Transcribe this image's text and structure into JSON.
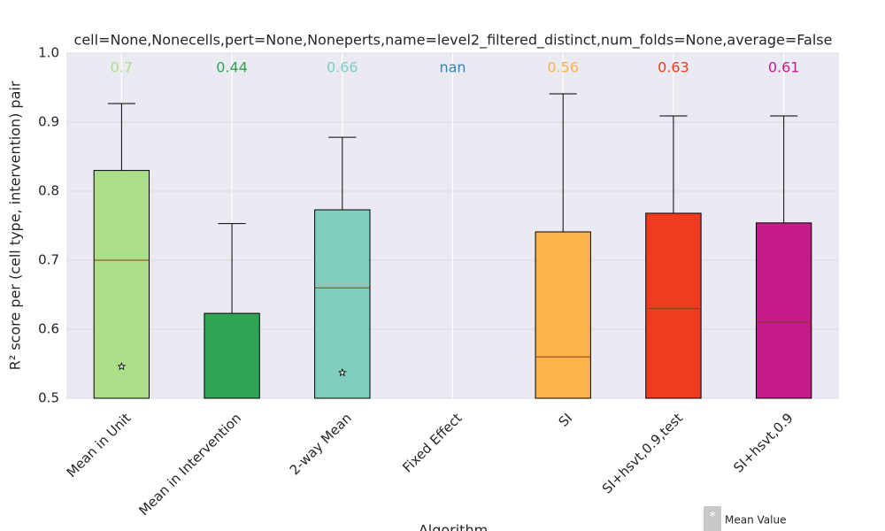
{
  "chart_data": {
    "type": "box",
    "title": "cell=None,Nonecells,pert=None,Noneperts,name=level2_filtered_distinct,num_folds=None,average=False",
    "x_label": "Algorithm",
    "y_label": "R² score per (cell type, intervention) pair",
    "categories": [
      "Mean in Unit",
      "Mean in Intervention",
      "2-way Mean",
      "Fixed Effect",
      "SI",
      "SI+hsvt,0.9,test",
      "SI+hsvt,0.9"
    ],
    "colors": [
      "#addf8b",
      "#31a354",
      "#7fcfbc",
      "#3182bd",
      "#fdb24b",
      "#f03b20",
      "#c51b8a"
    ],
    "medians": [
      0.7,
      0.44,
      0.66,
      null,
      0.56,
      0.63,
      0.61
    ],
    "median_labels": [
      "0.7",
      "0.44",
      "0.66",
      "nan",
      "0.56",
      "0.63",
      "0.61"
    ],
    "q3": [
      0.83,
      0.623,
      0.773,
      null,
      0.741,
      0.768,
      0.754
    ],
    "whisker_high": [
      0.927,
      0.753,
      0.878,
      null,
      0.941,
      0.909,
      0.909
    ],
    "means": [
      0.546,
      null,
      0.537,
      null,
      null,
      null,
      null
    ],
    "legend_label": "Mean Value",
    "ylim": [
      0.5,
      1.0
    ],
    "yticks": [
      0.5,
      0.6,
      0.7,
      0.8,
      0.9,
      {
        "value": 1.0,
        "label": "1.0"
      }
    ],
    "grid": true
  }
}
